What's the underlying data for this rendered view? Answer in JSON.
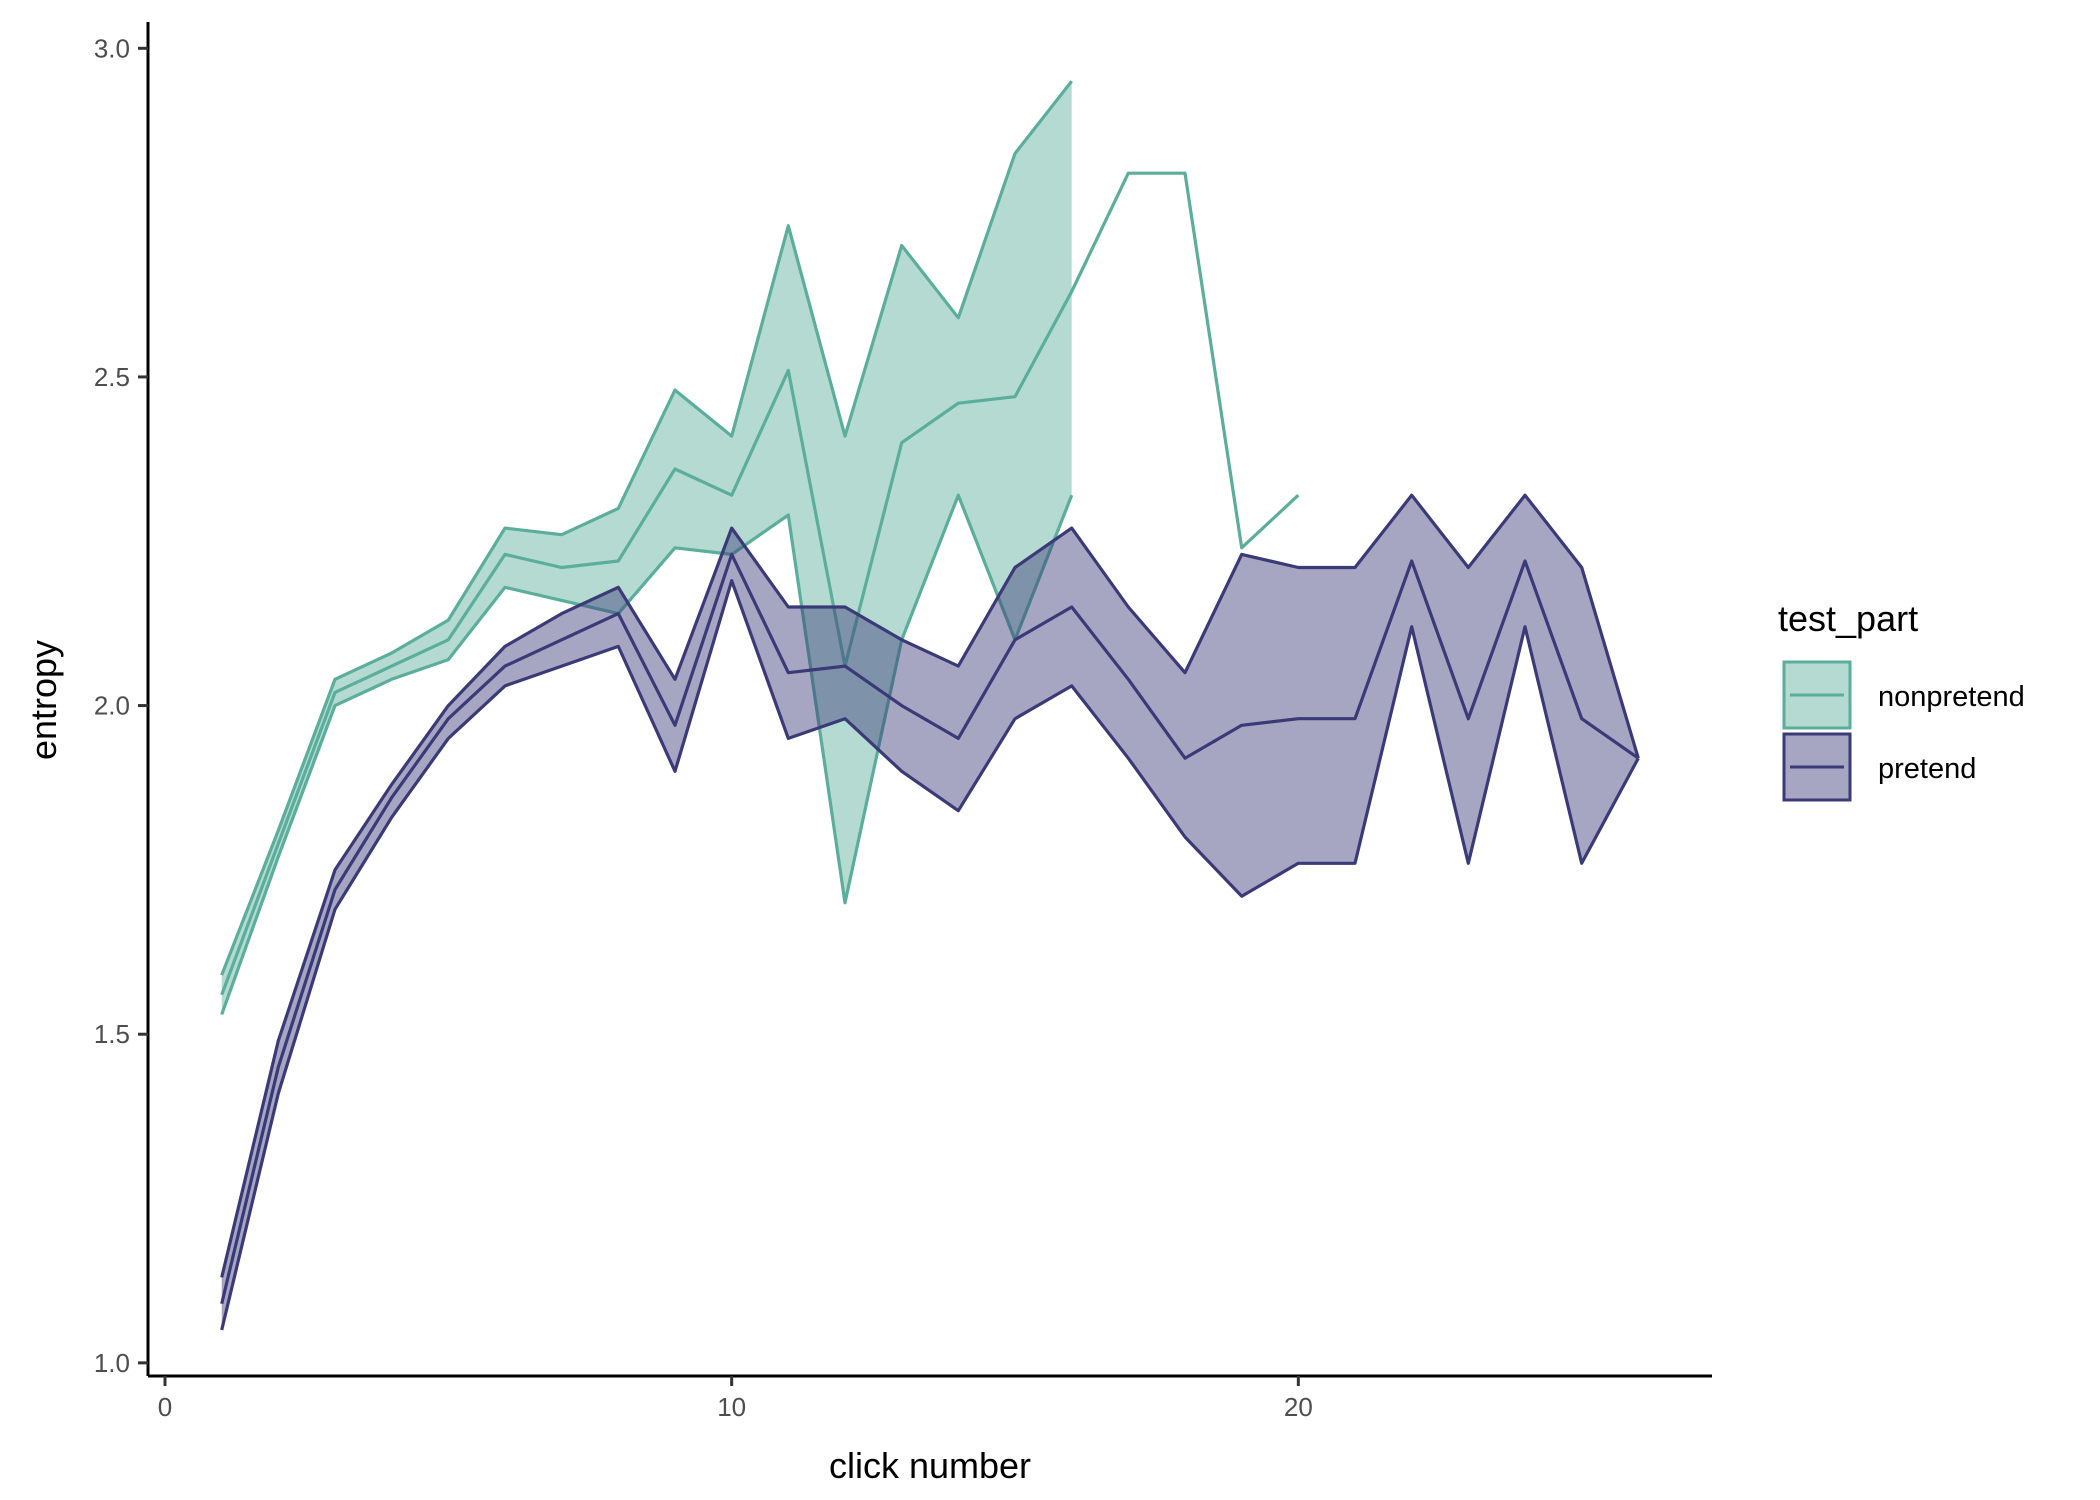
{
  "chart_data": {
    "type": "line",
    "xlabel": "click number",
    "ylabel": "entropy",
    "xlim": [
      -0.3,
      27.3
    ],
    "ylim": [
      0.98,
      3.04
    ],
    "x_ticks": [
      0,
      10,
      20
    ],
    "y_ticks": [
      1.0,
      1.5,
      2.0,
      2.5,
      3.0
    ],
    "x_tick_labels": [
      "0",
      "10",
      "20"
    ],
    "y_tick_labels": [
      "1.0",
      "1.5",
      "2.0",
      "2.5",
      "3.0"
    ],
    "grid": false,
    "legend": {
      "title": "test_part",
      "position": "right",
      "entries": [
        "nonpretend",
        "pretend"
      ]
    },
    "series": [
      {
        "name": "nonpretend",
        "color": "#5aae9b",
        "fill": "#5aae9b",
        "x": [
          1,
          2,
          3,
          4,
          5,
          6,
          7,
          8,
          9,
          10,
          11,
          12,
          13,
          14,
          15,
          16,
          17,
          18,
          19,
          20
        ],
        "mean": [
          1.56,
          1.79,
          2.02,
          2.06,
          2.1,
          2.23,
          2.21,
          2.22,
          2.36,
          2.32,
          2.51,
          2.06,
          2.4,
          2.46,
          2.47,
          2.63,
          2.81,
          2.81,
          2.24,
          2.32
        ],
        "upper": [
          1.59,
          1.81,
          2.04,
          2.08,
          2.13,
          2.27,
          2.26,
          2.3,
          2.48,
          2.41,
          2.73,
          2.41,
          2.7,
          2.59,
          2.84,
          2.95,
          null,
          null,
          null,
          null
        ],
        "lower": [
          1.53,
          1.77,
          2.0,
          2.04,
          2.07,
          2.18,
          2.16,
          2.14,
          2.24,
          2.23,
          2.29,
          1.7,
          2.1,
          2.32,
          2.1,
          2.32,
          null,
          null,
          null,
          null
        ]
      },
      {
        "name": "pretend",
        "color": "#3b3a78",
        "fill": "#3b3a78",
        "x": [
          1,
          2,
          3,
          4,
          5,
          6,
          7,
          8,
          9,
          10,
          11,
          12,
          13,
          14,
          15,
          16,
          17,
          18,
          19,
          20,
          21,
          22,
          23,
          24,
          25,
          26
        ],
        "mean": [
          1.09,
          1.45,
          1.72,
          1.86,
          1.98,
          2.06,
          2.1,
          2.14,
          1.97,
          2.23,
          2.05,
          2.06,
          2.0,
          1.95,
          2.1,
          2.15,
          2.04,
          1.92,
          1.97,
          1.98,
          1.98,
          2.22,
          1.98,
          2.22,
          1.98,
          1.92
        ],
        "upper": [
          1.13,
          1.49,
          1.75,
          1.88,
          2.0,
          2.09,
          2.14,
          2.18,
          2.04,
          2.27,
          2.15,
          2.15,
          2.1,
          2.06,
          2.21,
          2.27,
          2.15,
          2.05,
          2.23,
          2.21,
          2.21,
          2.32,
          2.21,
          2.32,
          2.21,
          1.92
        ],
        "lower": [
          1.05,
          1.41,
          1.69,
          1.83,
          1.95,
          2.03,
          2.06,
          2.09,
          1.9,
          2.19,
          1.95,
          1.98,
          1.9,
          1.84,
          1.98,
          2.03,
          1.92,
          1.8,
          1.71,
          1.76,
          1.76,
          2.12,
          1.76,
          2.12,
          1.76,
          1.92
        ]
      }
    ]
  }
}
